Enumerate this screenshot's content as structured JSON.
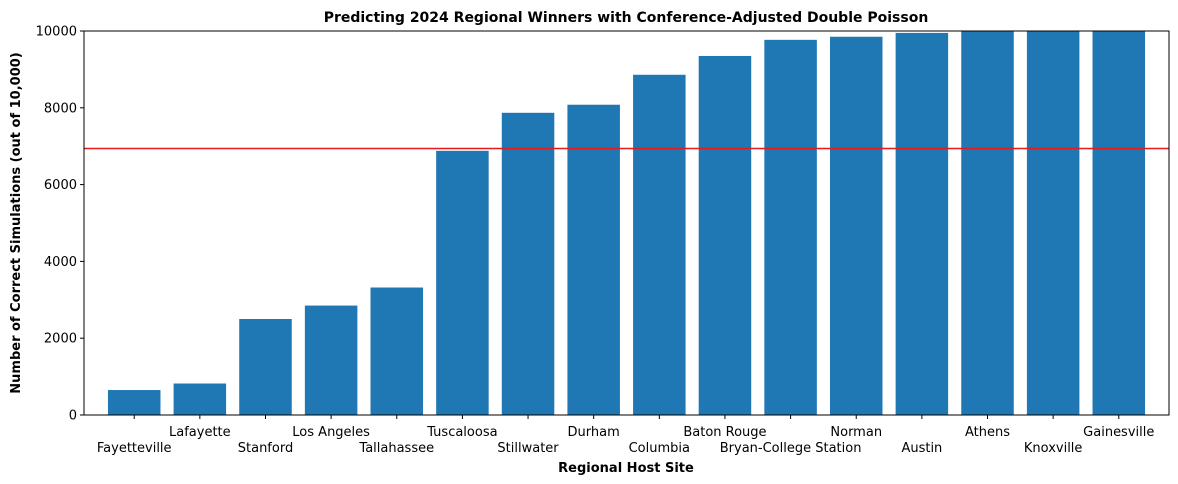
{
  "chart_data": {
    "type": "bar",
    "title": "Predicting 2024 Regional Winners with Conference-Adjusted Double Poisson",
    "xlabel": "Regional Host Site",
    "ylabel": "Number of Correct Simulations (out of 10,000)",
    "categories": [
      "Fayetteville",
      "Lafayette",
      "Stanford",
      "Los Angeles",
      "Tallahassee",
      "Tuscaloosa",
      "Stillwater",
      "Durham",
      "Columbia",
      "Baton Rouge",
      "Bryan-College Station",
      "Norman",
      "Austin",
      "Athens",
      "Knoxville",
      "Gainesville"
    ],
    "values": [
      650,
      820,
      2500,
      2850,
      3320,
      6880,
      7870,
      8080,
      8860,
      9350,
      9770,
      9850,
      9950,
      10000,
      10000,
      10000
    ],
    "ylim": [
      0,
      10000
    ],
    "yticks": [
      0,
      2000,
      4000,
      6000,
      8000,
      10000
    ],
    "reference_line": 6940,
    "grid": false,
    "bar_color": "#1f77b4",
    "line_color": "#e41a1c"
  }
}
